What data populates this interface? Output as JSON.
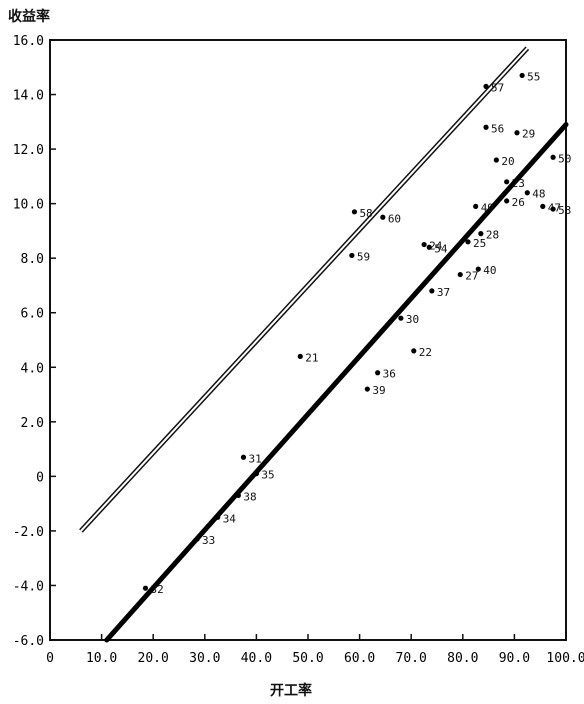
{
  "chart_data": {
    "type": "scatter",
    "title": "",
    "xlabel": "开工率",
    "ylabel": "收益率",
    "xlim": [
      0,
      100
    ],
    "ylim": [
      -6,
      16
    ],
    "grid": false,
    "x_ticks": [
      "0",
      "10.0",
      "20.0",
      "30.0",
      "40.0",
      "50.0",
      "60.0",
      "70.0",
      "80.0",
      "90.0",
      "100.0"
    ],
    "y_ticks": [
      "-6.0",
      "-4.0",
      "-2.0",
      "0",
      "2.0",
      "4.0",
      "6.0",
      "8.0",
      "10.0",
      "12.0",
      "14.0",
      "16.0"
    ],
    "points": [
      {
        "label": "57",
        "x": 84.5,
        "y": 14.3
      },
      {
        "label": "55",
        "x": 91.5,
        "y": 14.7
      },
      {
        "label": "56",
        "x": 84.5,
        "y": 12.8
      },
      {
        "label": "29",
        "x": 90.5,
        "y": 12.6
      },
      {
        "label": "20",
        "x": 86.5,
        "y": 11.6
      },
      {
        "label": "50",
        "x": 97.5,
        "y": 11.7
      },
      {
        "label": "23",
        "x": 88.5,
        "y": 10.8
      },
      {
        "label": "48",
        "x": 92.5,
        "y": 10.4
      },
      {
        "label": "49",
        "x": 82.5,
        "y": 9.9
      },
      {
        "label": "26",
        "x": 88.5,
        "y": 10.1
      },
      {
        "label": "47",
        "x": 95.5,
        "y": 9.9
      },
      {
        "label": "53",
        "x": 97.5,
        "y": 9.8
      },
      {
        "label": "58",
        "x": 59.0,
        "y": 9.7
      },
      {
        "label": "60",
        "x": 64.5,
        "y": 9.5
      },
      {
        "label": "28",
        "x": 83.5,
        "y": 8.9
      },
      {
        "label": "24",
        "x": 72.5,
        "y": 8.5
      },
      {
        "label": "54",
        "x": 73.5,
        "y": 8.4
      },
      {
        "label": "25",
        "x": 81.0,
        "y": 8.6
      },
      {
        "label": "59",
        "x": 58.5,
        "y": 8.1
      },
      {
        "label": "27",
        "x": 79.5,
        "y": 7.4
      },
      {
        "label": "40",
        "x": 83.0,
        "y": 7.6
      },
      {
        "label": "37",
        "x": 74.0,
        "y": 6.8
      },
      {
        "label": "30",
        "x": 68.0,
        "y": 5.8
      },
      {
        "label": "21",
        "x": 48.5,
        "y": 4.4
      },
      {
        "label": "22",
        "x": 70.5,
        "y": 4.6
      },
      {
        "label": "36",
        "x": 63.5,
        "y": 3.8
      },
      {
        "label": "39",
        "x": 61.5,
        "y": 3.2
      },
      {
        "label": "31",
        "x": 37.5,
        "y": 0.7
      },
      {
        "label": "35",
        "x": 40.0,
        "y": 0.1
      },
      {
        "label": "38",
        "x": 36.5,
        "y": -0.7
      },
      {
        "label": "34",
        "x": 32.5,
        "y": -1.5
      },
      {
        "label": "33",
        "x": 28.5,
        "y": -2.3
      },
      {
        "label": "32",
        "x": 18.5,
        "y": -4.1
      }
    ],
    "regression_line": {
      "x": [
        11,
        100
      ],
      "y": [
        -6,
        12.9
      ]
    },
    "reference_line": {
      "x": [
        6,
        92.5
      ],
      "y": [
        -2.0,
        15.7
      ]
    }
  }
}
